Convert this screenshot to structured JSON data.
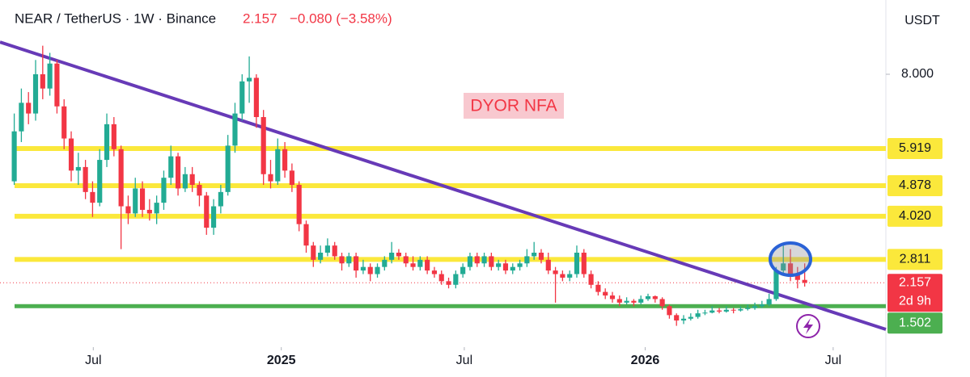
{
  "chart_data": {
    "type": "candlestick",
    "symbol": "NEAR / TetherUS · 1W · Binance",
    "last": "2.157",
    "change": "−0.080 (−3.58%)",
    "currency": "USDT",
    "annotation": "DYOR NFA",
    "up_color": "#22ab94",
    "down_color": "#f23645",
    "xlim": [
      -2,
      122.4
    ],
    "xticks": [
      {
        "value": 11.1,
        "label": "Jul"
      },
      {
        "value": 37.5,
        "label": "2025"
      },
      {
        "value": 63.2,
        "label": "Jul"
      },
      {
        "value": 88.6,
        "label": "2026"
      },
      {
        "value": 115,
        "label": "Jul"
      }
    ],
    "ylim": [
      0.353,
      10.081
    ],
    "yticks": [
      {
        "value": 8,
        "label": "8.000"
      }
    ],
    "levels": [
      {
        "value": 5.919,
        "label": "5.919",
        "color": "#fbe83b"
      },
      {
        "value": 4.878,
        "label": "4.878",
        "color": "#fbe83b"
      },
      {
        "value": 4.02,
        "label": "4.020",
        "color": "#fbe83b"
      },
      {
        "value": 2.811,
        "label": "2.811",
        "color": "#fbe83b"
      },
      {
        "value": 1.502,
        "label": "1.502",
        "color": "#4caf50"
      }
    ],
    "price_line": {
      "value": 2.157,
      "countdown": "2d 9h",
      "color": "#f23645"
    },
    "trendline": {
      "x": [
        -2,
        122.4
      ],
      "y": [
        8.9,
        0.85
      ],
      "color": "#673ab7"
    },
    "ohlc": [
      [
        5.0,
        6.9,
        4.9,
        6.4
      ],
      [
        6.4,
        7.6,
        6.1,
        7.2
      ],
      [
        7.2,
        7.5,
        6.6,
        6.9
      ],
      [
        6.9,
        8.4,
        6.7,
        8.0
      ],
      [
        8.0,
        8.8,
        7.3,
        7.6
      ],
      [
        7.6,
        8.6,
        7.4,
        8.3
      ],
      [
        8.3,
        8.4,
        6.9,
        7.1
      ],
      [
        7.1,
        7.3,
        5.9,
        6.2
      ],
      [
        6.2,
        6.4,
        5.0,
        5.3
      ],
      [
        5.3,
        5.8,
        4.9,
        5.4
      ],
      [
        5.4,
        5.6,
        4.5,
        4.7
      ],
      [
        4.7,
        5.0,
        4.0,
        4.4
      ],
      [
        4.4,
        5.9,
        4.3,
        5.6
      ],
      [
        5.6,
        6.9,
        5.4,
        6.6
      ],
      [
        6.6,
        6.8,
        5.7,
        5.9
      ],
      [
        5.9,
        6.0,
        3.1,
        4.3
      ],
      [
        4.3,
        4.6,
        3.8,
        4.1
      ],
      [
        4.1,
        5.1,
        4.0,
        4.8
      ],
      [
        4.8,
        5.0,
        4.0,
        4.2
      ],
      [
        4.2,
        4.5,
        3.9,
        4.1
      ],
      [
        4.1,
        4.6,
        3.8,
        4.4
      ],
      [
        4.4,
        5.3,
        4.2,
        5.1
      ],
      [
        5.1,
        6.0,
        4.9,
        5.7
      ],
      [
        5.7,
        5.8,
        4.6,
        4.8
      ],
      [
        4.8,
        5.4,
        4.7,
        5.2
      ],
      [
        5.2,
        5.4,
        4.7,
        4.9
      ],
      [
        4.9,
        5.0,
        4.3,
        4.6
      ],
      [
        4.6,
        4.7,
        3.5,
        3.7
      ],
      [
        3.7,
        4.5,
        3.5,
        4.3
      ],
      [
        4.3,
        4.9,
        4.1,
        4.7
      ],
      [
        4.7,
        6.3,
        4.6,
        6.0
      ],
      [
        6.0,
        7.2,
        5.8,
        6.9
      ],
      [
        6.9,
        8.0,
        6.7,
        7.8
      ],
      [
        7.8,
        8.5,
        7.2,
        7.9
      ],
      [
        7.9,
        8.0,
        6.5,
        6.8
      ],
      [
        6.8,
        7.0,
        4.9,
        5.2
      ],
      [
        5.2,
        5.6,
        4.8,
        5.0
      ],
      [
        5.0,
        6.2,
        4.9,
        5.9
      ],
      [
        5.9,
        6.1,
        5.1,
        5.3
      ],
      [
        5.3,
        5.5,
        4.7,
        4.9
      ],
      [
        4.9,
        5.0,
        3.6,
        3.8
      ],
      [
        3.8,
        3.9,
        3.0,
        3.2
      ],
      [
        3.2,
        3.3,
        2.6,
        2.8
      ],
      [
        2.8,
        3.2,
        2.7,
        3.0
      ],
      [
        3.0,
        3.4,
        2.9,
        3.2
      ],
      [
        3.2,
        3.3,
        2.8,
        2.9
      ],
      [
        2.9,
        3.0,
        2.5,
        2.7
      ],
      [
        2.7,
        3.0,
        2.6,
        2.9
      ],
      [
        2.9,
        3.0,
        2.3,
        2.5
      ],
      [
        2.5,
        2.8,
        2.4,
        2.6
      ],
      [
        2.6,
        2.7,
        2.2,
        2.4
      ],
      [
        2.4,
        2.7,
        2.3,
        2.6
      ],
      [
        2.6,
        2.9,
        2.5,
        2.8
      ],
      [
        2.8,
        3.3,
        2.7,
        3.0
      ],
      [
        3.0,
        3.1,
        2.8,
        2.9
      ],
      [
        2.9,
        3.0,
        2.6,
        2.7
      ],
      [
        2.7,
        2.9,
        2.5,
        2.6
      ],
      [
        2.6,
        2.9,
        2.5,
        2.8
      ],
      [
        2.8,
        2.9,
        2.4,
        2.5
      ],
      [
        2.5,
        2.6,
        2.3,
        2.4
      ],
      [
        2.4,
        2.5,
        2.1,
        2.2
      ],
      [
        2.2,
        2.3,
        2.0,
        2.1
      ],
      [
        2.1,
        2.5,
        2.0,
        2.4
      ],
      [
        2.4,
        2.7,
        2.3,
        2.6
      ],
      [
        2.6,
        3.0,
        2.5,
        2.9
      ],
      [
        2.9,
        3.0,
        2.6,
        2.7
      ],
      [
        2.7,
        3.0,
        2.6,
        2.9
      ],
      [
        2.9,
        3.0,
        2.5,
        2.6
      ],
      [
        2.6,
        2.8,
        2.5,
        2.7
      ],
      [
        2.7,
        2.8,
        2.4,
        2.5
      ],
      [
        2.5,
        2.7,
        2.4,
        2.6
      ],
      [
        2.6,
        2.8,
        2.5,
        2.7
      ],
      [
        2.7,
        3.1,
        2.6,
        2.9
      ],
      [
        2.9,
        3.3,
        2.8,
        3.0
      ],
      [
        3.0,
        3.1,
        2.7,
        2.8
      ],
      [
        2.8,
        3.0,
        2.4,
        2.5
      ],
      [
        2.5,
        2.6,
        1.6,
        2.4
      ],
      [
        2.4,
        2.5,
        2.2,
        2.3
      ],
      [
        2.3,
        2.5,
        2.2,
        2.4
      ],
      [
        2.4,
        3.2,
        2.3,
        3.0
      ],
      [
        3.0,
        3.1,
        2.3,
        2.4
      ],
      [
        2.4,
        2.5,
        2.0,
        2.1
      ],
      [
        2.1,
        2.2,
        1.8,
        1.9
      ],
      [
        1.9,
        2.0,
        1.7,
        1.8
      ],
      [
        1.8,
        1.9,
        1.6,
        1.7
      ],
      [
        1.7,
        1.8,
        1.5,
        1.6
      ],
      [
        1.6,
        1.75,
        1.55,
        1.65
      ],
      [
        1.65,
        1.7,
        1.5,
        1.6
      ],
      [
        1.6,
        1.8,
        1.55,
        1.7
      ],
      [
        1.7,
        1.85,
        1.65,
        1.78
      ],
      [
        1.78,
        1.8,
        1.6,
        1.7
      ],
      [
        1.7,
        1.75,
        1.4,
        1.5
      ],
      [
        1.5,
        1.55,
        1.15,
        1.25
      ],
      [
        1.25,
        1.3,
        0.95,
        1.1
      ],
      [
        1.1,
        1.25,
        1.0,
        1.15
      ],
      [
        1.15,
        1.3,
        1.1,
        1.2
      ],
      [
        1.2,
        1.4,
        1.15,
        1.3
      ],
      [
        1.3,
        1.4,
        1.25,
        1.32
      ],
      [
        1.32,
        1.5,
        1.3,
        1.38
      ],
      [
        1.38,
        1.45,
        1.3,
        1.35
      ],
      [
        1.35,
        1.5,
        1.32,
        1.4
      ],
      [
        1.4,
        1.45,
        1.3,
        1.38
      ],
      [
        1.38,
        1.5,
        1.35,
        1.42
      ],
      [
        1.42,
        1.55,
        1.38,
        1.45
      ],
      [
        1.45,
        1.6,
        1.4,
        1.5
      ],
      [
        1.5,
        1.65,
        1.45,
        1.55
      ],
      [
        1.55,
        1.85,
        1.5,
        1.7
      ],
      [
        1.7,
        2.6,
        1.65,
        2.5
      ],
      [
        2.5,
        3.2,
        2.4,
        2.7
      ],
      [
        2.7,
        3.1,
        2.2,
        2.4
      ],
      [
        2.4,
        2.6,
        2.0,
        2.237
      ],
      [
        2.237,
        2.7,
        2.05,
        2.157
      ]
    ]
  }
}
